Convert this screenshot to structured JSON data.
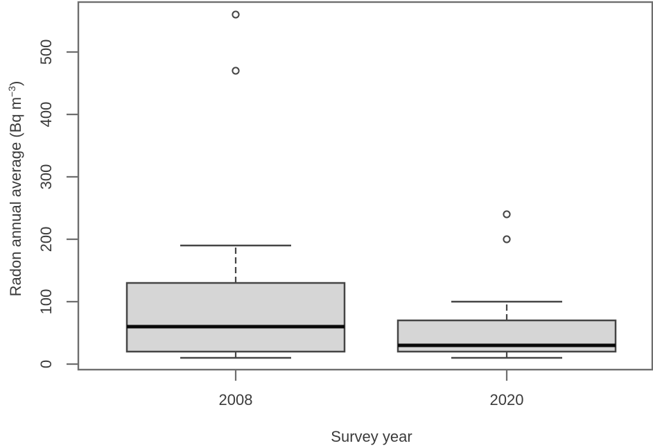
{
  "chart_data": {
    "type": "boxplot",
    "title": "",
    "xlabel": "Survey year",
    "ylabel": "Radon annual average (Bq m⁻³)",
    "ylabel_parts": {
      "pre": "Radon annual average (Bq m",
      "sup": "−3",
      "post": ")"
    },
    "categories": [
      "2008",
      "2020"
    ],
    "y_ticks": [
      "0",
      "100",
      "200",
      "300",
      "400",
      "500"
    ],
    "ylim": [
      -7,
      580
    ],
    "grid": false,
    "legend": false,
    "series": [
      {
        "category": "2008",
        "whisker_low": 10,
        "q1": 20,
        "median": 60,
        "q3": 130,
        "whisker_high": 190,
        "outliers": [
          470,
          560
        ]
      },
      {
        "category": "2020",
        "whisker_low": 10,
        "q1": 20,
        "median": 30,
        "q3": 70,
        "whisker_high": 100,
        "outliers": [
          200,
          240
        ]
      }
    ],
    "colors": {
      "background": "#ffffff",
      "box_fill": "#d6d6d6",
      "box_stroke": "#454545",
      "median": "#0a0a0a",
      "axis": "#6e6e6e",
      "text": "#3b3b3b",
      "outlier_fill": "#ffffff"
    }
  }
}
